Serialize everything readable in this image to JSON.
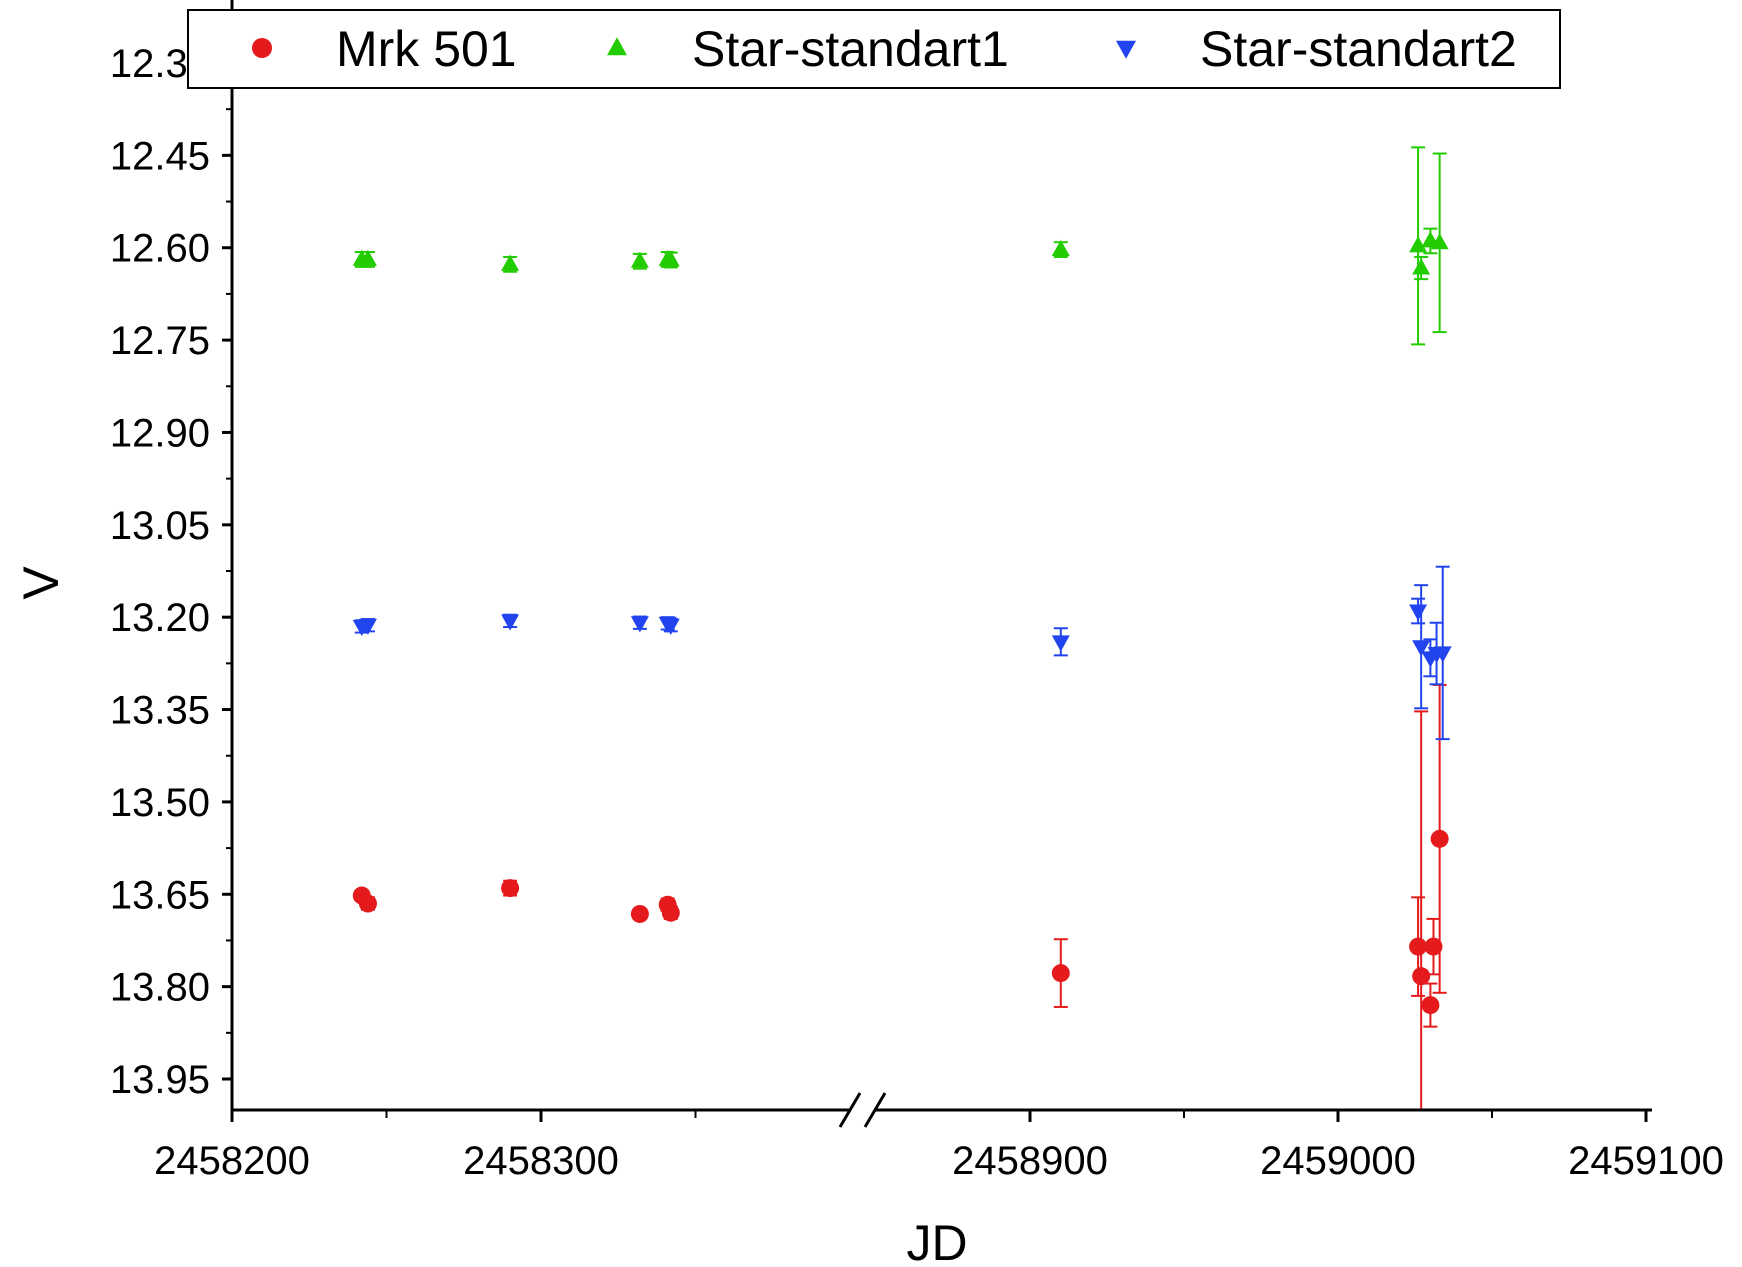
{
  "chart_data": {
    "type": "scatter",
    "title": "",
    "xlabel": "JD",
    "ylabel": "V",
    "y_inverted": true,
    "ylim": [
      12.3,
      14.0
    ],
    "y_ticks": [
      "12.30",
      "12.45",
      "12.60",
      "12.75",
      "12.90",
      "13.05",
      "13.20",
      "13.35",
      "13.50",
      "13.65",
      "13.80",
      "13.95"
    ],
    "x_axis_break": true,
    "x_segments": [
      {
        "range": [
          2458200,
          2458400
        ],
        "ticks": [
          "2458200",
          "2458300"
        ]
      },
      {
        "range": [
          2458900,
          2459100
        ],
        "ticks": [
          "2458900",
          "2459000",
          "2459100"
        ]
      }
    ],
    "legend": {
      "position": "top",
      "frame": true
    },
    "series": [
      {
        "name": "Mrk 501",
        "color": "#e41a1c",
        "marker": "circle",
        "points": [
          {
            "x": 2458242,
            "y": 13.652,
            "err": 0.005
          },
          {
            "x": 2458244,
            "y": 13.665,
            "err": 0.01
          },
          {
            "x": 2458290,
            "y": 13.64,
            "err": 0.012
          },
          {
            "x": 2458332,
            "y": 13.682,
            "err": 0.008
          },
          {
            "x": 2458341,
            "y": 13.667,
            "err": 0.01
          },
          {
            "x": 2458342,
            "y": 13.68,
            "err": 0.01
          },
          {
            "x": 2458910,
            "y": 13.778,
            "err": 0.055
          },
          {
            "x": 2459026,
            "y": 13.735,
            "err": 0.08
          },
          {
            "x": 2459027,
            "y": 13.783,
            "err": 0.43
          },
          {
            "x": 2459030,
            "y": 13.83,
            "err": 0.035
          },
          {
            "x": 2459031,
            "y": 13.735,
            "err": 0.045
          },
          {
            "x": 2459033,
            "y": 13.56,
            "err": 0.25
          }
        ]
      },
      {
        "name": "Star-standart1",
        "color": "#22cc00",
        "marker": "triangle-up",
        "points": [
          {
            "x": 2458242,
            "y": 12.619,
            "err": 0.012
          },
          {
            "x": 2458244,
            "y": 12.619,
            "err": 0.012
          },
          {
            "x": 2458290,
            "y": 12.627,
            "err": 0.012
          },
          {
            "x": 2458332,
            "y": 12.622,
            "err": 0.012
          },
          {
            "x": 2458341,
            "y": 12.619,
            "err": 0.012
          },
          {
            "x": 2458342,
            "y": 12.62,
            "err": 0.012
          },
          {
            "x": 2458910,
            "y": 12.603,
            "err": 0.012
          },
          {
            "x": 2459026,
            "y": 12.597,
            "err": 0.16
          },
          {
            "x": 2459027,
            "y": 12.633,
            "err": 0.018
          },
          {
            "x": 2459030,
            "y": 12.589,
            "err": 0.02
          },
          {
            "x": 2459033,
            "y": 12.592,
            "err": 0.145
          }
        ]
      },
      {
        "name": "Star-standart2",
        "color": "#2244ee",
        "marker": "triangle-down",
        "points": [
          {
            "x": 2458242,
            "y": 13.215,
            "err": 0.01
          },
          {
            "x": 2458244,
            "y": 13.213,
            "err": 0.01
          },
          {
            "x": 2458290,
            "y": 13.206,
            "err": 0.01
          },
          {
            "x": 2458332,
            "y": 13.209,
            "err": 0.01
          },
          {
            "x": 2458341,
            "y": 13.21,
            "err": 0.01
          },
          {
            "x": 2458342,
            "y": 13.213,
            "err": 0.01
          },
          {
            "x": 2458910,
            "y": 13.24,
            "err": 0.022
          },
          {
            "x": 2459026,
            "y": 13.19,
            "err": 0.02
          },
          {
            "x": 2459027,
            "y": 13.248,
            "err": 0.1
          },
          {
            "x": 2459030,
            "y": 13.266,
            "err": 0.03
          },
          {
            "x": 2459032,
            "y": 13.259,
            "err": 0.05
          },
          {
            "x": 2459034,
            "y": 13.258,
            "err": 0.14
          }
        ]
      }
    ]
  }
}
